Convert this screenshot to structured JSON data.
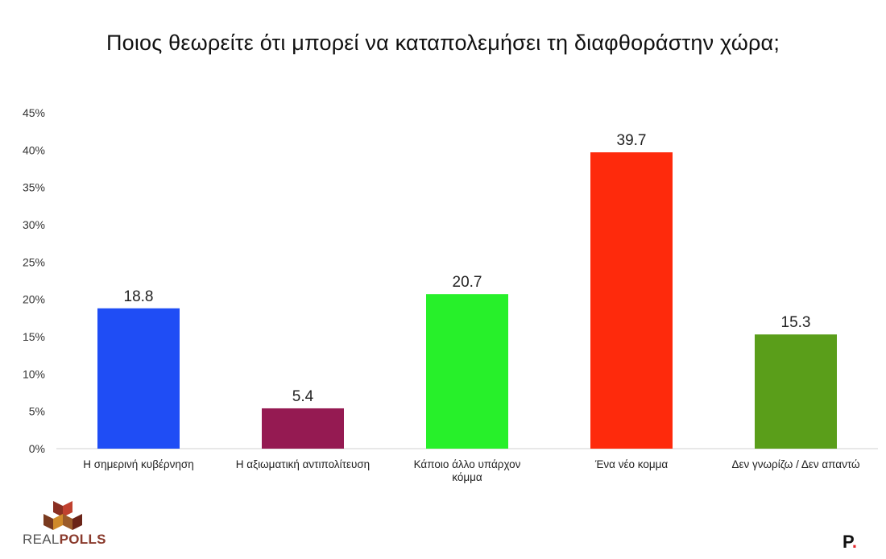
{
  "chart_data": {
    "type": "bar",
    "title": "Ποιος θεωρείτε ότι μπορεί να καταπολεμήσει τη διαφθοράστην χώρα;",
    "categories": [
      [
        "Η σημερινή  κυβέρνηση"
      ],
      [
        "Η αξιωματική  αντιπολίτευση"
      ],
      [
        "Κάποιο άλλο  υπάρχον",
        "κόμμα"
      ],
      [
        "Ένα νέο κομμα"
      ],
      [
        "Δεν γνωρίζω  /  Δεν απαντώ"
      ]
    ],
    "values": [
      18.8,
      5.4,
      20.7,
      39.7,
      15.3
    ],
    "value_labels": [
      "18.8",
      "5.4",
      "20.7",
      "39.7",
      "15.3"
    ],
    "colors": [
      "#1f4df5",
      "#951a52",
      "#27f02a",
      "#fe2a0c",
      "#5a9e1a"
    ],
    "y_ticks": [
      "0%",
      "5%",
      "10%",
      "15%",
      "20%",
      "25%",
      "30%",
      "35%",
      "40%",
      "45%"
    ],
    "ylim": [
      0,
      45
    ],
    "xlabel": "",
    "ylabel": "",
    "grid": false,
    "legend": "none"
  },
  "branding": {
    "left_logo_a": "REAL",
    "left_logo_b": "POLLS",
    "right_logo_letter": "P",
    "right_logo_dot": "."
  }
}
